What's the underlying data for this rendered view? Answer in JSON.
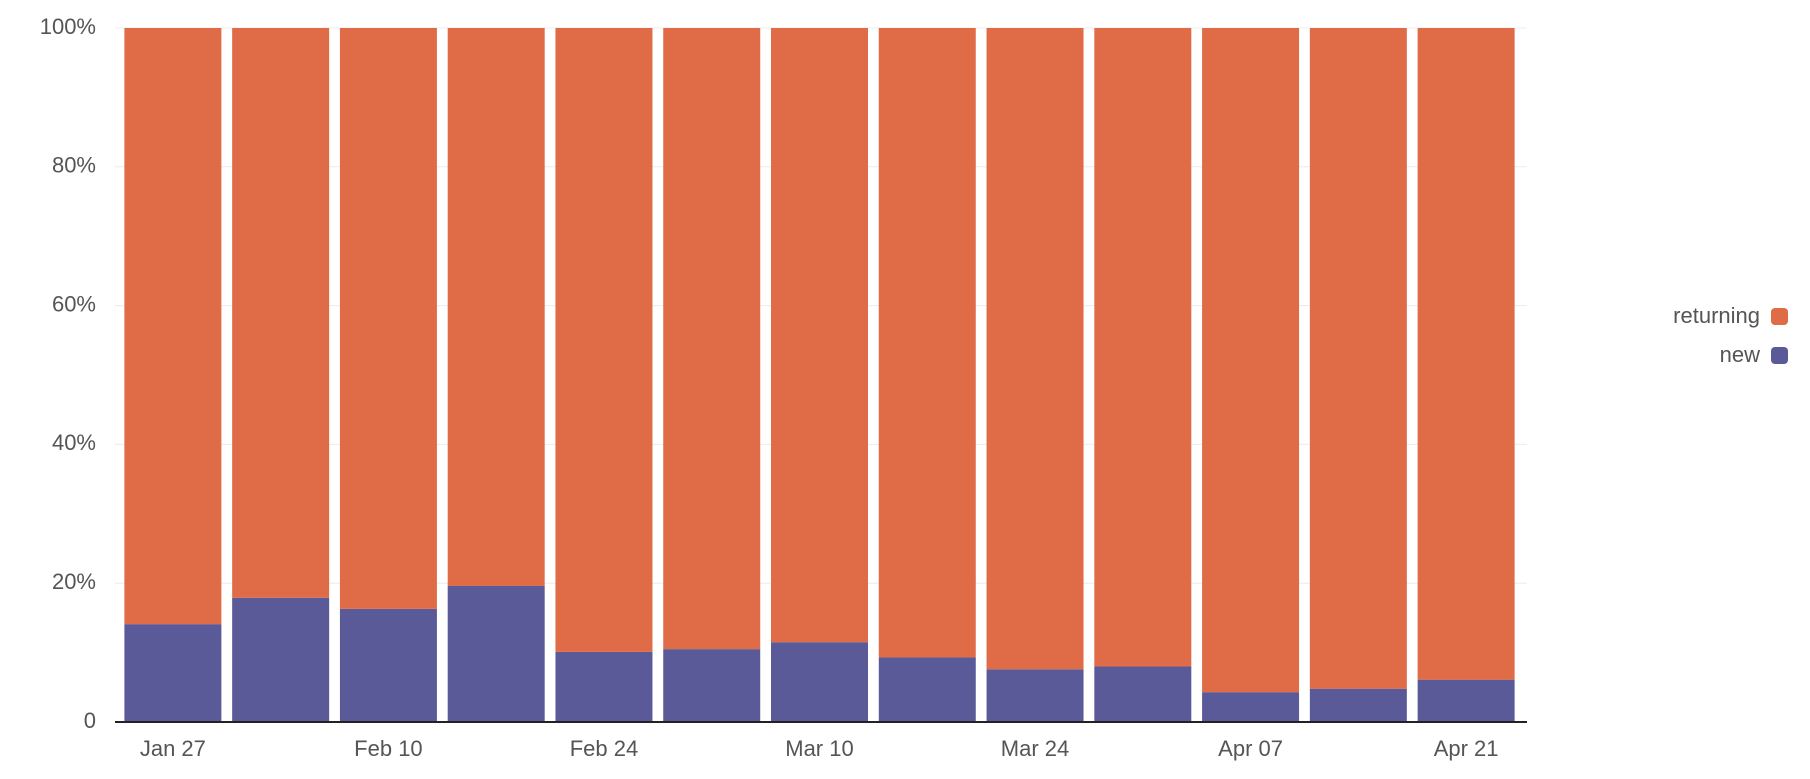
{
  "chart_data": {
    "type": "stacked_bar",
    "categories": [
      "Jan 27",
      null,
      "Feb 10",
      null,
      "Feb 24",
      null,
      "Mar 10",
      null,
      "Mar 24",
      null,
      "Apr 07",
      null,
      "Apr 21"
    ],
    "series": [
      {
        "name": "new",
        "color": "#5b5a99",
        "values": [
          14.1,
          17.9,
          16.3,
          19.6,
          10.1,
          10.5,
          11.5,
          9.3,
          7.6,
          8.0,
          4.3,
          4.8,
          6.1
        ]
      },
      {
        "name": "returning",
        "color": "#e06b47",
        "values": [
          85.9,
          82.1,
          83.7,
          80.4,
          89.9,
          89.5,
          88.5,
          90.7,
          92.4,
          92.0,
          95.7,
          95.2,
          93.9
        ]
      }
    ],
    "ylim": [
      0,
      100
    ],
    "yticks": [
      0,
      {
        "value": 20,
        "label": "20%"
      },
      {
        "value": 40,
        "label": "40%"
      },
      {
        "value": 60,
        "label": "60%"
      },
      {
        "value": 80,
        "label": "80%"
      },
      {
        "value": 100,
        "label": "100%"
      }
    ],
    "grid": true,
    "legend": "right"
  }
}
